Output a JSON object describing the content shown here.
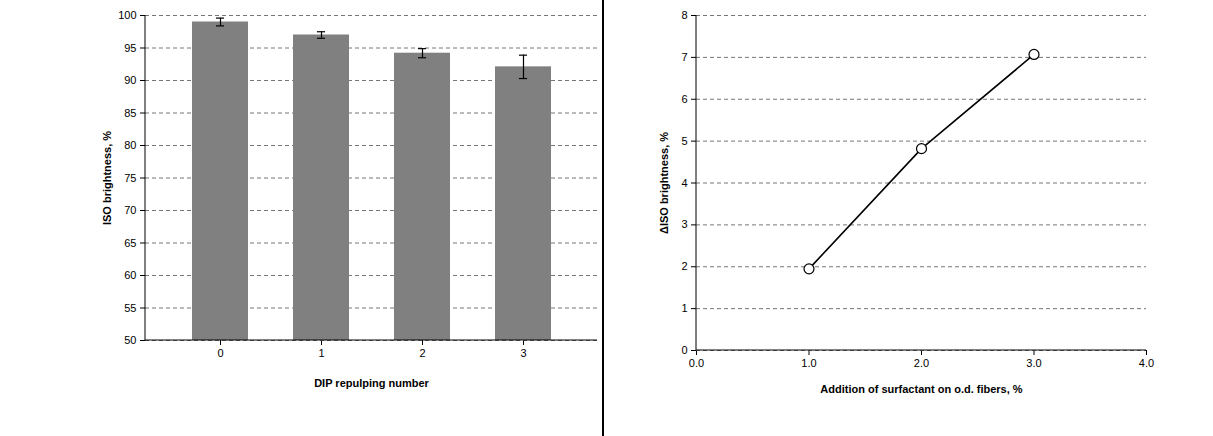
{
  "chart_data": [
    {
      "type": "bar",
      "x_label": "DIP repulping number",
      "y_label": "ISO brightness, %",
      "categories": [
        "0",
        "1",
        "2",
        "3"
      ],
      "values": [
        99.0,
        97.0,
        94.2,
        92.1
      ],
      "errors": [
        0.6,
        0.5,
        0.7,
        1.8
      ],
      "color": "#808080",
      "ylim": [
        50,
        100
      ],
      "yticks": [
        50,
        55,
        60,
        65,
        70,
        75,
        80,
        85,
        90,
        95,
        100
      ],
      "grid": true
    },
    {
      "type": "line",
      "x_label": "Addition of surfactant on o.d. fibers, %",
      "y_label": "ΔISO brightness, %",
      "x": [
        1,
        2,
        3
      ],
      "values": [
        1.95,
        4.82,
        7.07
      ],
      "color": "#000000",
      "marker": "circle",
      "xlim": [
        0,
        4
      ],
      "xticks": [
        0,
        1,
        2,
        3,
        4
      ],
      "ylim": [
        0,
        8
      ],
      "yticks": [
        0,
        1,
        2,
        3,
        4,
        5,
        6,
        7,
        8
      ],
      "grid": true
    }
  ]
}
